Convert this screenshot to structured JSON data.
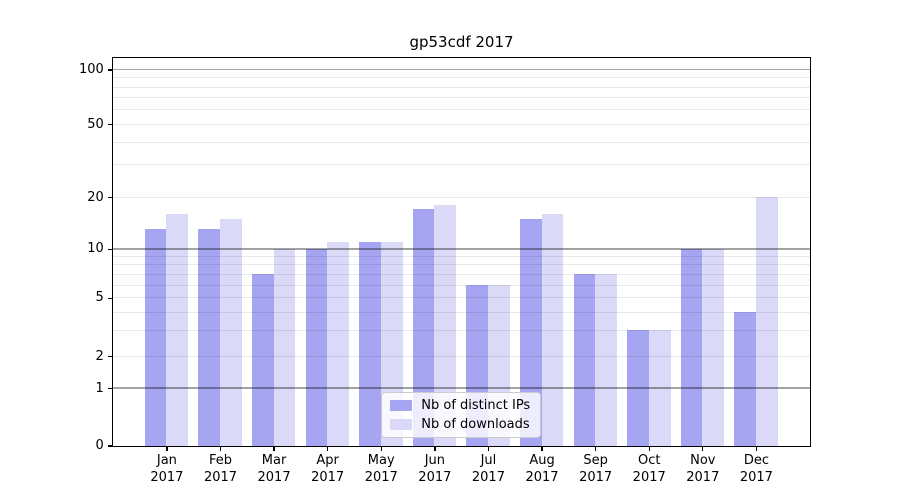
{
  "title": "gp53cdf 2017",
  "chart_data": {
    "type": "bar",
    "title": "gp53cdf 2017",
    "categories": [
      {
        "month": "Jan",
        "year": "2017"
      },
      {
        "month": "Feb",
        "year": "2017"
      },
      {
        "month": "Mar",
        "year": "2017"
      },
      {
        "month": "Apr",
        "year": "2017"
      },
      {
        "month": "May",
        "year": "2017"
      },
      {
        "month": "Jun",
        "year": "2017"
      },
      {
        "month": "Jul",
        "year": "2017"
      },
      {
        "month": "Aug",
        "year": "2017"
      },
      {
        "month": "Sep",
        "year": "2017"
      },
      {
        "month": "Oct",
        "year": "2017"
      },
      {
        "month": "Nov",
        "year": "2017"
      },
      {
        "month": "Dec",
        "year": "2017"
      }
    ],
    "series": [
      {
        "name": "Nb of distinct IPs",
        "slug": "distinct-ips",
        "color": "#a5a5f2",
        "values": [
          13,
          13,
          7,
          10,
          11,
          17,
          6,
          15,
          7,
          3,
          10,
          4
        ]
      },
      {
        "name": "Nb of downloads",
        "slug": "downloads",
        "color": "#dadaf8",
        "values": [
          16,
          15,
          10,
          11,
          11,
          18,
          6,
          16,
          7,
          3,
          10,
          20
        ]
      }
    ],
    "y_axis": {
      "scale": "log above 1, linear 0-1",
      "tick_labels": [
        100,
        50,
        20,
        10,
        5,
        2,
        1,
        0
      ],
      "major_gridlines": [
        1,
        10,
        100
      ],
      "minor_gridlines": [
        2,
        3,
        4,
        5,
        6,
        7,
        8,
        9,
        20,
        30,
        40,
        50,
        60,
        70,
        80,
        90
      ],
      "ymin": 0,
      "ymax_approx": 115
    },
    "legend": {
      "position": "lower center",
      "entries": [
        "Nb of distinct IPs",
        "Nb of downloads"
      ]
    },
    "grid": "on",
    "colors": {
      "bar_distinct_ips": "#a5a5f2",
      "bar_downloads": "#dadaf8",
      "grid_minor": "#e9e9e9",
      "grid_major": "#a3a3a3",
      "spine": "#000000",
      "background": "#ffffff"
    }
  }
}
